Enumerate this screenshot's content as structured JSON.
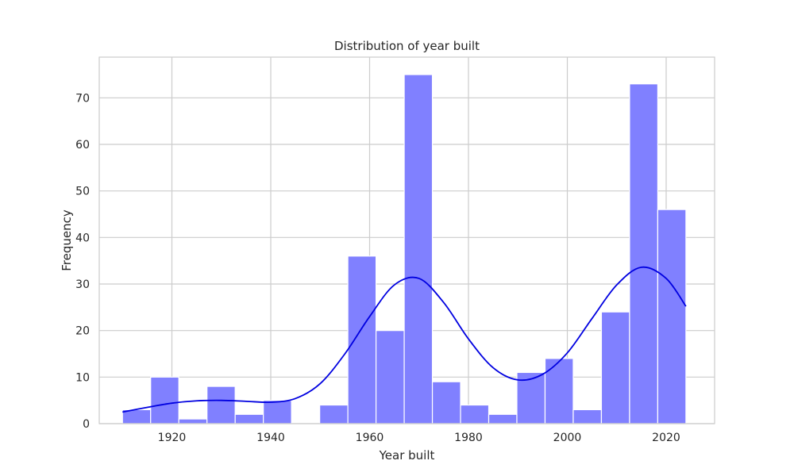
{
  "chart_data": {
    "type": "bar",
    "title": "Distribution of year built",
    "xlabel": "Year built",
    "ylabel": "Frequency",
    "xlim": [
      1905.3,
      2029.8
    ],
    "ylim": [
      0,
      78.75
    ],
    "xticks": [
      1920,
      1940,
      1960,
      1980,
      2000,
      2020
    ],
    "yticks": [
      0,
      10,
      20,
      30,
      40,
      50,
      60,
      70
    ],
    "grid": true,
    "legend": "none",
    "bin_edges": [
      1910.0,
      1915.7,
      1921.4,
      1927.1,
      1932.8,
      1938.5,
      1944.2,
      1949.9,
      1955.6,
      1961.3,
      1967.0,
      1972.7,
      1978.4,
      1984.1,
      1989.8,
      1995.5,
      2001.2,
      2006.9,
      2012.6,
      2018.3,
      2024.0
    ],
    "counts": [
      3,
      10,
      1,
      8,
      2,
      5,
      0,
      4,
      36,
      20,
      75,
      9,
      4,
      2,
      11,
      14,
      3,
      24,
      73,
      46
    ],
    "kde": {
      "x": [
        1910,
        1915,
        1920,
        1925,
        1930,
        1935,
        1940,
        1945,
        1950,
        1955,
        1960,
        1965,
        1970,
        1975,
        1980,
        1985,
        1990,
        1995,
        2000,
        2005,
        2010,
        2015,
        2020,
        2024
      ],
      "y": [
        2.5,
        3.5,
        4.4,
        4.9,
        5.0,
        4.8,
        4.6,
        5.4,
        8.6,
        15.0,
        23.0,
        29.8,
        31.2,
        26.0,
        18.2,
        12.0,
        9.4,
        10.6,
        15.2,
        22.6,
        29.8,
        33.6,
        31.2,
        25.2
      ]
    },
    "colors": {
      "bar_fill": "#8080ff",
      "bar_edge": "#ffffff",
      "kde_line": "#0000e0",
      "grid": "#cccccc",
      "axes_edge": "#cccccc"
    }
  }
}
